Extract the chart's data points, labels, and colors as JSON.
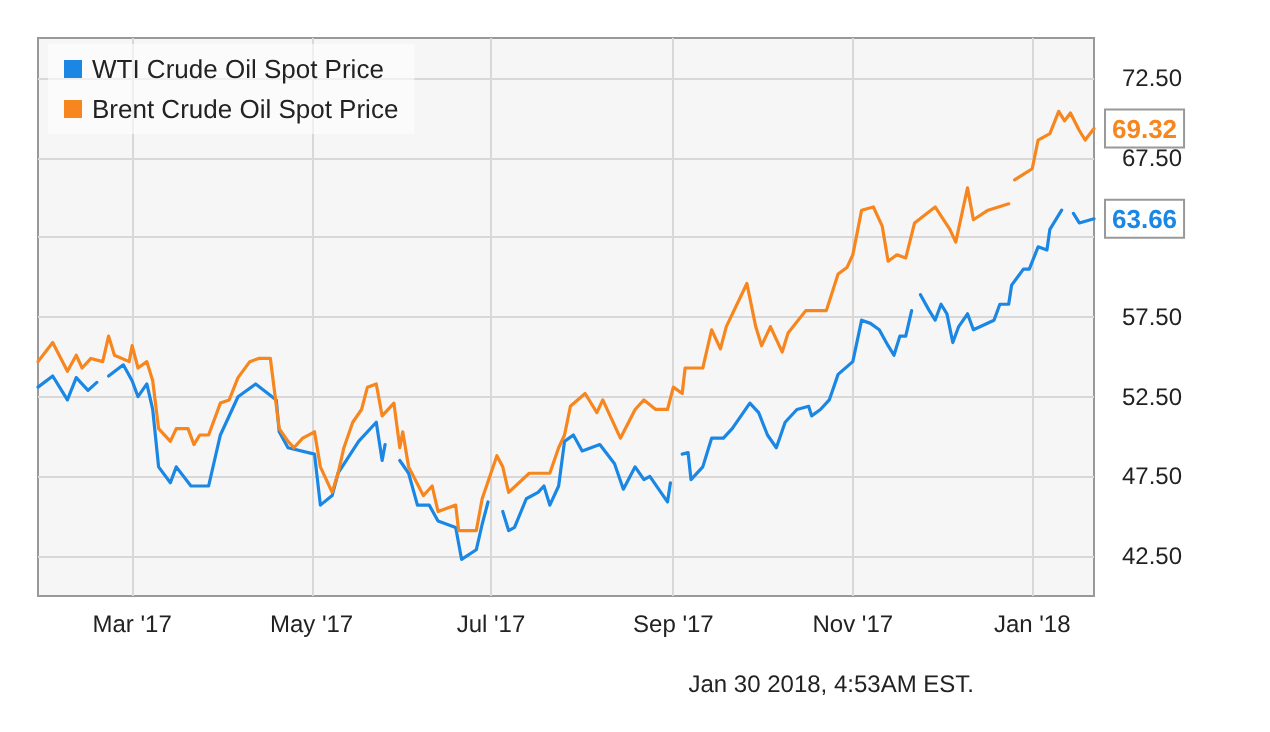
{
  "chart_data": {
    "type": "line",
    "xlim": [
      "2017-01-28",
      "2018-01-22"
    ],
    "ylim": [
      40,
      75
    ],
    "xticks": [
      {
        "value": "2017-03-01",
        "label": "Mar '17"
      },
      {
        "value": "2017-05-01",
        "label": "May '17"
      },
      {
        "value": "2017-07-01",
        "label": "Jul '17"
      },
      {
        "value": "2017-09-01",
        "label": "Sep '17"
      },
      {
        "value": "2017-11-01",
        "label": "Nov '17"
      },
      {
        "value": "2018-01-01",
        "label": "Jan '18"
      }
    ],
    "yticks": [
      {
        "value": 42.5,
        "label": "42.50"
      },
      {
        "value": 47.5,
        "label": "47.50"
      },
      {
        "value": 52.5,
        "label": "52.50"
      },
      {
        "value": 57.5,
        "label": "57.50"
      },
      {
        "value": 62.5,
        "label": null
      },
      {
        "value": 67.5,
        "label": "67.50"
      },
      {
        "value": 72.5,
        "label": "72.50"
      }
    ],
    "grid": true,
    "legend": "top left",
    "marker": "none",
    "line_style": "solid",
    "annotations": [
      "Jan 30 2018, 4:53AM EST."
    ],
    "series": [
      {
        "name": "WTI Crude Oil Spot Price",
        "color": "#1a87e4",
        "x": [
          "2017-01-28",
          "2017-02-02",
          "2017-02-07",
          "2017-02-10",
          "2017-02-14",
          "2017-02-17",
          "2017-02-19",
          "2017-02-21",
          "2017-02-26",
          "2017-03-01",
          "2017-03-03",
          "2017-03-06",
          "2017-03-08",
          "2017-03-10",
          "2017-03-14",
          "2017-03-16",
          "2017-03-21",
          "2017-03-27",
          "2017-03-31",
          "2017-04-06",
          "2017-04-12",
          "2017-04-19",
          "2017-04-20",
          "2017-04-23",
          "2017-05-02",
          "2017-05-04",
          "2017-05-08",
          "2017-05-10",
          "2017-05-17",
          "2017-05-23",
          "2017-05-25",
          "2017-05-26",
          "2017-05-28",
          "2017-05-31",
          "2017-06-03",
          "2017-06-06",
          "2017-06-10",
          "2017-06-13",
          "2017-06-19",
          "2017-06-21",
          "2017-06-26",
          "2017-06-28",
          "2017-06-30",
          "2017-07-02",
          "2017-07-05",
          "2017-07-07",
          "2017-07-09",
          "2017-07-13",
          "2017-07-17",
          "2017-07-19",
          "2017-07-21",
          "2017-07-24",
          "2017-07-26",
          "2017-07-29",
          "2017-08-01",
          "2017-08-07",
          "2017-08-12",
          "2017-08-15",
          "2017-08-19",
          "2017-08-22",
          "2017-08-24",
          "2017-08-27",
          "2017-08-30",
          "2017-08-31",
          "2017-09-02",
          "2017-09-04",
          "2017-09-06",
          "2017-09-07",
          "2017-09-11",
          "2017-09-14",
          "2017-09-18",
          "2017-09-21",
          "2017-09-27",
          "2017-09-30",
          "2017-10-03",
          "2017-10-06",
          "2017-10-09",
          "2017-10-13",
          "2017-10-17",
          "2017-10-18",
          "2017-10-21",
          "2017-10-24",
          "2017-10-27",
          "2017-11-01",
          "2017-11-04",
          "2017-11-07",
          "2017-11-10",
          "2017-11-13",
          "2017-11-15",
          "2017-11-17",
          "2017-11-19",
          "2017-11-21",
          "2017-11-22",
          "2017-11-24",
          "2017-11-27",
          "2017-11-29",
          "2017-12-01",
          "2017-12-03",
          "2017-12-05",
          "2017-12-07",
          "2017-12-10",
          "2017-12-12",
          "2017-12-19",
          "2017-12-21",
          "2017-12-24",
          "2017-12-25",
          "2017-12-29",
          "2017-12-31",
          "2018-01-03",
          "2018-01-06",
          "2018-01-07",
          "2018-01-11",
          "2018-01-12",
          "2018-01-15",
          "2018-01-17",
          "2018-01-22"
        ],
        "values": [
          53.1,
          53.8,
          52.3,
          53.7,
          52.9,
          53.4,
          null,
          53.8,
          54.5,
          53.5,
          52.5,
          53.3,
          51.7,
          48.1,
          47.1,
          48.1,
          46.9,
          46.9,
          50.1,
          52.5,
          53.3,
          52.3,
          50.3,
          49.3,
          48.9,
          45.7,
          46.3,
          47.7,
          49.7,
          50.9,
          48.5,
          49.5,
          null,
          48.5,
          47.7,
          45.7,
          45.7,
          44.7,
          44.3,
          42.3,
          42.9,
          44.5,
          45.9,
          null,
          45.3,
          44.1,
          44.3,
          46.1,
          46.5,
          46.9,
          45.7,
          46.9,
          49.7,
          50.1,
          49.1,
          49.5,
          48.3,
          46.7,
          48.1,
          47.3,
          47.5,
          46.7,
          45.9,
          47.1,
          null,
          48.9,
          49.0,
          47.3,
          48.1,
          49.9,
          49.9,
          50.5,
          52.1,
          51.5,
          50.1,
          49.3,
          50.9,
          51.7,
          51.9,
          51.3,
          51.7,
          52.3,
          53.9,
          54.7,
          57.3,
          57.1,
          56.7,
          55.7,
          55.1,
          56.3,
          56.3,
          57.9,
          null,
          58.9,
          57.9,
          57.3,
          58.3,
          57.7,
          55.9,
          56.9,
          57.7,
          56.7,
          57.3,
          58.3,
          58.3,
          59.5,
          60.5,
          60.5,
          61.9,
          61.7,
          63.0,
          64.2,
          null,
          64.0,
          63.4,
          63.66
        ],
        "value_labels": [
          null,
          null,
          null,
          null,
          null,
          null,
          null,
          null,
          null,
          null,
          null,
          null,
          null,
          null,
          null,
          null,
          null,
          null,
          null,
          null,
          null,
          null,
          null,
          null,
          null,
          null,
          null,
          null,
          null,
          null,
          null,
          null,
          null,
          null,
          null,
          null,
          null,
          null,
          null,
          null,
          null,
          null,
          null,
          null,
          null,
          null,
          null,
          null,
          null,
          null,
          null,
          null,
          null,
          null,
          null,
          null,
          null,
          null,
          null,
          null,
          null,
          null,
          null,
          null,
          null,
          null,
          null,
          null,
          null,
          null,
          null,
          null,
          null,
          null,
          null,
          null,
          null,
          null,
          null,
          null,
          null,
          null,
          null,
          null,
          null,
          null,
          null,
          null,
          null,
          null,
          null,
          null,
          null,
          null,
          null,
          null,
          null,
          null,
          null,
          null,
          null,
          null,
          null,
          null,
          null,
          null,
          null,
          null,
          null,
          null,
          null,
          null,
          null,
          null,
          null,
          "63.66"
        ]
      },
      {
        "name": "Brent Crude Oil Spot Price",
        "color": "#f7861e",
        "x": [
          "2017-01-28",
          "2017-02-02",
          "2017-02-07",
          "2017-02-10",
          "2017-02-12",
          "2017-02-15",
          "2017-02-19",
          "2017-02-21",
          "2017-02-23",
          "2017-02-28",
          "2017-03-01",
          "2017-03-03",
          "2017-03-06",
          "2017-03-08",
          "2017-03-10",
          "2017-03-14",
          "2017-03-16",
          "2017-03-20",
          "2017-03-22",
          "2017-03-24",
          "2017-03-27",
          "2017-03-31",
          "2017-04-03",
          "2017-04-06",
          "2017-04-10",
          "2017-04-13",
          "2017-04-17",
          "2017-04-20",
          "2017-04-23",
          "2017-04-25",
          "2017-04-28",
          "2017-05-02",
          "2017-05-04",
          "2017-05-08",
          "2017-05-10",
          "2017-05-12",
          "2017-05-15",
          "2017-05-18",
          "2017-05-20",
          "2017-05-23",
          "2017-05-25",
          "2017-05-29",
          "2017-05-31",
          "2017-06-01",
          "2017-06-03",
          "2017-06-08",
          "2017-06-11",
          "2017-06-13",
          "2017-06-19",
          "2017-06-20",
          "2017-06-26",
          "2017-06-28",
          "2017-07-03",
          "2017-07-05",
          "2017-07-07",
          "2017-07-14",
          "2017-07-21",
          "2017-07-24",
          "2017-07-26",
          "2017-07-28",
          "2017-08-02",
          "2017-08-06",
          "2017-08-08",
          "2017-08-14",
          "2017-08-19",
          "2017-08-22",
          "2017-08-26",
          "2017-08-30",
          "2017-09-01",
          "2017-09-04",
          "2017-09-05",
          "2017-09-11",
          "2017-09-14",
          "2017-09-17",
          "2017-09-19",
          "2017-09-26",
          "2017-09-29",
          "2017-10-01",
          "2017-10-04",
          "2017-10-08",
          "2017-10-10",
          "2017-10-16",
          "2017-10-23",
          "2017-10-27",
          "2017-10-30",
          "2017-11-01",
          "2017-11-04",
          "2017-11-08",
          "2017-11-11",
          "2017-11-13",
          "2017-11-16",
          "2017-11-19",
          "2017-11-22",
          "2017-11-29",
          "2017-12-04",
          "2017-12-06",
          "2017-12-10",
          "2017-12-12",
          "2017-12-17",
          "2017-12-24",
          "2017-12-25",
          "2017-12-26",
          "2018-01-01",
          "2018-01-03",
          "2018-01-07",
          "2018-01-10",
          "2018-01-12",
          "2018-01-14",
          "2018-01-17",
          "2018-01-19",
          "2018-01-22"
        ],
        "values": [
          54.7,
          55.9,
          54.1,
          55.1,
          54.3,
          54.9,
          54.7,
          56.3,
          55.1,
          54.7,
          55.7,
          54.3,
          54.7,
          53.5,
          50.5,
          49.7,
          50.5,
          50.5,
          49.5,
          50.1,
          50.1,
          52.1,
          52.3,
          53.7,
          54.7,
          54.9,
          54.9,
          50.5,
          49.7,
          49.3,
          49.9,
          50.3,
          48.1,
          46.5,
          47.7,
          49.3,
          50.9,
          51.7,
          53.1,
          53.3,
          51.3,
          52.1,
          49.3,
          50.3,
          48.1,
          46.3,
          46.9,
          45.3,
          45.7,
          44.1,
          44.1,
          46.1,
          48.8,
          48.1,
          46.5,
          47.7,
          47.7,
          49.3,
          50.1,
          51.9,
          52.7,
          51.5,
          52.3,
          49.9,
          51.7,
          52.3,
          51.7,
          51.7,
          53.1,
          52.7,
          54.3,
          54.3,
          56.7,
          55.5,
          56.9,
          59.6,
          56.9,
          55.7,
          56.9,
          55.3,
          56.5,
          57.9,
          57.9,
          60.2,
          60.6,
          61.4,
          64.2,
          64.4,
          63.2,
          61.0,
          61.4,
          61.2,
          63.4,
          64.4,
          63.0,
          62.2,
          65.6,
          63.6,
          64.2,
          64.6,
          null,
          66.1,
          66.8,
          68.6,
          69.0,
          70.4,
          69.8,
          70.3,
          69.2,
          68.6,
          69.32
        ],
        "value_labels": [
          null,
          null,
          null,
          null,
          null,
          null,
          null,
          null,
          null,
          null,
          null,
          null,
          null,
          null,
          null,
          null,
          null,
          null,
          null,
          null,
          null,
          null,
          null,
          null,
          null,
          null,
          null,
          null,
          null,
          null,
          null,
          null,
          null,
          null,
          null,
          null,
          null,
          null,
          null,
          null,
          null,
          null,
          null,
          null,
          null,
          null,
          null,
          null,
          null,
          null,
          null,
          null,
          null,
          null,
          null,
          null,
          null,
          null,
          null,
          null,
          null,
          null,
          null,
          null,
          null,
          null,
          null,
          null,
          null,
          null,
          null,
          null,
          null,
          null,
          null,
          null,
          null,
          null,
          null,
          null,
          null,
          null,
          null,
          null,
          null,
          null,
          null,
          null,
          null,
          null,
          null,
          null,
          null,
          null,
          null,
          null,
          null,
          null,
          null,
          null,
          null,
          null,
          null,
          null,
          null,
          null,
          null,
          null,
          null,
          null,
          "69.32"
        ]
      }
    ]
  }
}
